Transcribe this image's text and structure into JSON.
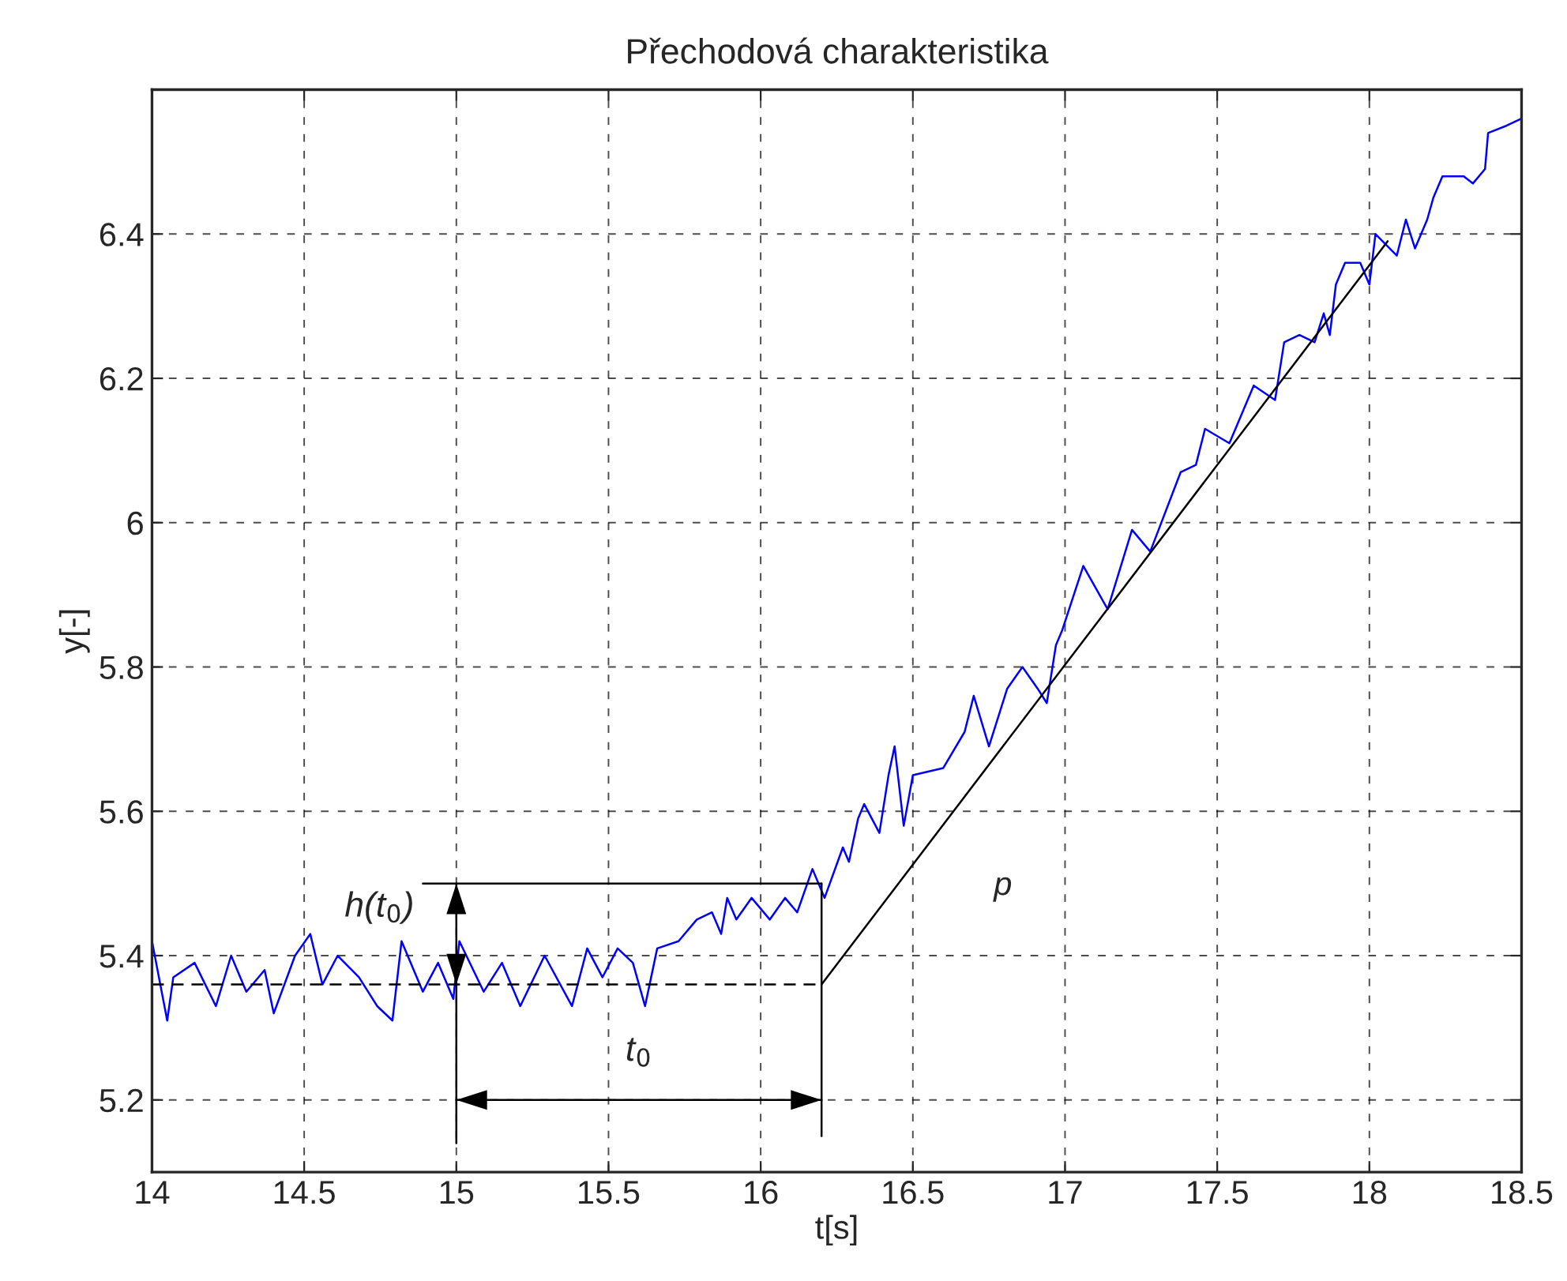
{
  "chart_data": {
    "type": "line",
    "title": "Přechodová charakteristika",
    "xlabel": "t[s]",
    "ylabel": "y[-]",
    "xlim": [
      14,
      18.5
    ],
    "xticks": [
      14,
      14.5,
      15,
      15.5,
      16,
      16.5,
      17,
      17.5,
      18,
      18.5
    ],
    "ylim": [
      5.1,
      6.6
    ],
    "yticks": [
      5.2,
      5.4,
      5.6,
      5.8,
      6,
      6.2,
      6.4
    ],
    "grid": true,
    "legend": false,
    "series": [
      {
        "color": "#0000ff",
        "line_style": "solid",
        "x": [
          14.0,
          14.05,
          14.07,
          14.14,
          14.21,
          14.26,
          14.31,
          14.37,
          14.4,
          14.47,
          14.52,
          14.56,
          14.61,
          14.68,
          14.74,
          14.79,
          14.82,
          14.89,
          14.94,
          14.99,
          15.01,
          15.09,
          15.15,
          15.21,
          15.29,
          15.38,
          15.43,
          15.48,
          15.53,
          15.58,
          15.62,
          15.66,
          15.73,
          15.79,
          15.84,
          15.87,
          15.89,
          15.92,
          15.97,
          16.03,
          16.08,
          16.12,
          16.17,
          16.21,
          16.27,
          16.29,
          16.32,
          16.34,
          16.39,
          16.42,
          16.44,
          16.47,
          16.5,
          16.6,
          16.67,
          16.7,
          16.75,
          16.81,
          16.86,
          16.91,
          16.94,
          16.97,
          16.99,
          17.06,
          17.14,
          17.22,
          17.28,
          17.38,
          17.43,
          17.46,
          17.54,
          17.58,
          17.62,
          17.69,
          17.72,
          17.77,
          17.82,
          17.85,
          17.87,
          17.89,
          17.92,
          17.97,
          18.0,
          18.02,
          18.09,
          18.12,
          18.15,
          18.19,
          18.21,
          18.24,
          18.31,
          18.34,
          18.38,
          18.39,
          18.45,
          18.5
        ],
        "values": [
          5.42,
          5.31,
          5.37,
          5.39,
          5.33,
          5.4,
          5.35,
          5.38,
          5.32,
          5.4,
          5.43,
          5.36,
          5.4,
          5.37,
          5.33,
          5.31,
          5.42,
          5.35,
          5.39,
          5.34,
          5.42,
          5.35,
          5.39,
          5.33,
          5.4,
          5.33,
          5.41,
          5.37,
          5.41,
          5.39,
          5.33,
          5.41,
          5.42,
          5.45,
          5.46,
          5.43,
          5.48,
          5.45,
          5.48,
          5.45,
          5.48,
          5.46,
          5.52,
          5.48,
          5.55,
          5.53,
          5.59,
          5.61,
          5.57,
          5.65,
          5.69,
          5.58,
          5.65,
          5.66,
          5.71,
          5.76,
          5.69,
          5.77,
          5.8,
          5.77,
          5.75,
          5.83,
          5.85,
          5.94,
          5.88,
          5.99,
          5.96,
          6.07,
          6.08,
          6.13,
          6.11,
          6.15,
          6.19,
          6.17,
          6.25,
          6.26,
          6.25,
          6.29,
          6.26,
          6.33,
          6.36,
          6.36,
          6.33,
          6.4,
          6.37,
          6.42,
          6.38,
          6.42,
          6.45,
          6.48,
          6.48,
          6.47,
          6.49,
          6.54,
          6.55,
          6.56
        ]
      },
      {
        "name": "p",
        "color": "#000000",
        "line_style": "solid",
        "x": [
          16.2,
          18.06
        ],
        "values": [
          5.36,
          6.39
        ]
      },
      {
        "color": "#000000",
        "line_style": "dashed",
        "x": [
          14,
          16.2
        ],
        "values": [
          5.36,
          5.36
        ]
      },
      {
        "color": "#000000",
        "line_style": "solid",
        "x": [
          14.89,
          16.2
        ],
        "values": [
          5.5,
          5.5
        ]
      },
      {
        "color": "#000000",
        "line_style": "solid",
        "x": [
          16.2,
          16.2
        ],
        "values": [
          5.15,
          5.5
        ]
      },
      {
        "color": "#000000",
        "line_style": "solid",
        "x": [
          15,
          15
        ],
        "values": [
          5.14,
          5.36
        ]
      },
      {
        "color": "#000000",
        "line_style": "solid",
        "x": [
          15,
          15
        ],
        "values": [
          5.36,
          5.5
        ]
      },
      {
        "color": "#000000",
        "line_style": "solid",
        "x": [
          15,
          16.2
        ],
        "values": [
          5.2,
          5.2
        ]
      }
    ],
    "annotations": [
      "h(t$_{0}$)",
      "t$_{0}$"
    ]
  }
}
